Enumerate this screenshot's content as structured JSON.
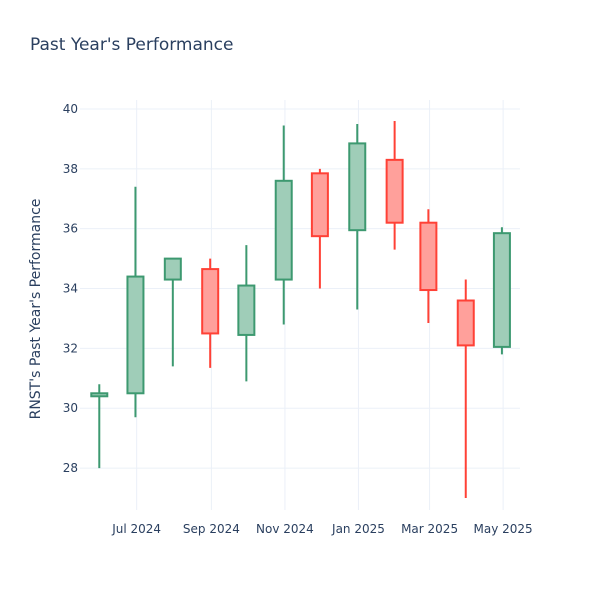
{
  "chart_data": {
    "type": "candlestick",
    "title": "Past Year's Performance",
    "xlabel": "",
    "ylabel": "RNST's Past Year's Performance",
    "ylim": [
      26.6,
      40.3
    ],
    "yticks": [
      28,
      30,
      32,
      34,
      36,
      38,
      40
    ],
    "xticks": [
      {
        "label": "Jul 2024",
        "date": "2024-07-01"
      },
      {
        "label": "Sep 2024",
        "date": "2024-09-01"
      },
      {
        "label": "Nov 2024",
        "date": "2024-11-01"
      },
      {
        "label": "Jan 2025",
        "date": "2025-01-01"
      },
      {
        "label": "Mar 2025",
        "date": "2025-03-01"
      },
      {
        "label": "May 2025",
        "date": "2025-05-01"
      }
    ],
    "xrange": [
      "2024-05-15",
      "2025-05-15"
    ],
    "grid": true,
    "increasing_color": "#3d9970",
    "increasing_fill": "#9fcdb8",
    "decreasing_color": "#ff4136",
    "decreasing_fill": "#ffa09b",
    "candles": [
      {
        "date": "2024-05-31",
        "open": 30.4,
        "high": 30.8,
        "low": 28.0,
        "close": 30.5
      },
      {
        "date": "2024-06-30",
        "open": 30.5,
        "high": 37.4,
        "low": 29.7,
        "close": 34.4
      },
      {
        "date": "2024-07-31",
        "open": 34.3,
        "high": 35.0,
        "low": 31.4,
        "close": 35.0
      },
      {
        "date": "2024-08-31",
        "open": 34.65,
        "high": 35.0,
        "low": 31.35,
        "close": 32.5
      },
      {
        "date": "2024-09-30",
        "open": 32.45,
        "high": 35.45,
        "low": 30.9,
        "close": 34.1
      },
      {
        "date": "2024-10-31",
        "open": 34.3,
        "high": 39.45,
        "low": 32.8,
        "close": 37.6
      },
      {
        "date": "2024-11-30",
        "open": 37.85,
        "high": 38.0,
        "low": 34.0,
        "close": 35.75
      },
      {
        "date": "2024-12-31",
        "open": 35.95,
        "high": 39.5,
        "low": 33.3,
        "close": 38.85
      },
      {
        "date": "2025-01-31",
        "open": 38.3,
        "high": 39.6,
        "low": 35.3,
        "close": 36.2
      },
      {
        "date": "2025-02-28",
        "open": 36.2,
        "high": 36.65,
        "low": 32.85,
        "close": 33.95
      },
      {
        "date": "2025-03-31",
        "open": 33.6,
        "high": 34.3,
        "low": 27.0,
        "close": 32.1
      },
      {
        "date": "2025-04-30",
        "open": 32.05,
        "high": 36.05,
        "low": 31.8,
        "close": 35.85
      }
    ]
  }
}
